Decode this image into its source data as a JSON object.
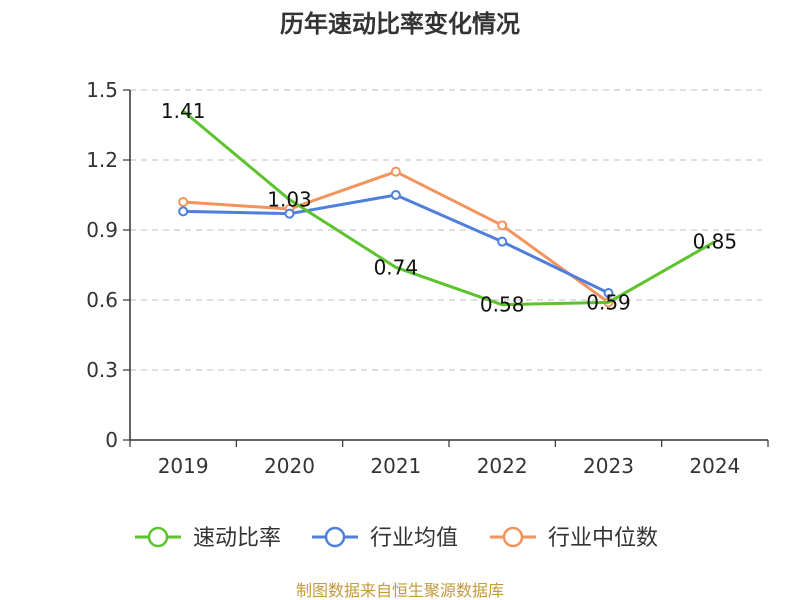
{
  "chart_data": {
    "type": "line",
    "title": "历年速动比率变化情况",
    "categories": [
      "2019",
      "2020",
      "2021",
      "2022",
      "2023",
      "2024"
    ],
    "yticks": [
      "0",
      "0.3",
      "0.6",
      "0.9",
      "1.2",
      "1.5"
    ],
    "ylim": [
      0,
      1.5
    ],
    "grid": true,
    "legend_position": "bottom",
    "series": [
      {
        "name": "速动比率",
        "color": "#5cc32c",
        "labeled": true,
        "values": [
          1.41,
          1.03,
          0.74,
          0.58,
          0.59,
          0.85
        ],
        "labels": [
          "1.41",
          "1.03",
          "0.74",
          "0.58",
          "0.59",
          "0.85"
        ]
      },
      {
        "name": "行业均值",
        "color": "#4f7fdc",
        "labeled": false,
        "values": [
          0.98,
          0.97,
          1.05,
          0.85,
          0.63,
          null
        ]
      },
      {
        "name": "行业中位数",
        "color": "#f5935c",
        "labeled": false,
        "values": [
          1.02,
          0.99,
          1.15,
          0.92,
          0.59,
          null
        ]
      }
    ]
  },
  "source": "制图数据来自恒生聚源数据库"
}
